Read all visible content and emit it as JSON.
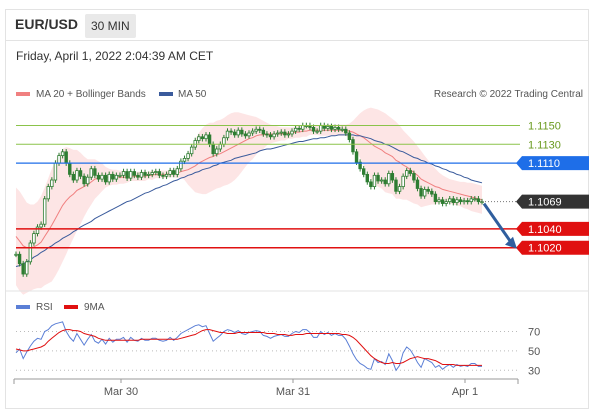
{
  "header": {
    "pair": "EUR/USD",
    "timeframe": "30 MIN"
  },
  "datetime": "Friday, April 1, 2022 2:04:39 AM CET",
  "legend": {
    "ma20": "MA 20 + Bollinger Bands",
    "ma50": "MA 50",
    "credit": "Research © 2022 Trading Central",
    "rsi": "RSI",
    "ma9": "9MA"
  },
  "colors": {
    "ma20": "#f08080",
    "ma50": "#3a5b9c",
    "bands": "#fde0e0",
    "candle": "#2e7d32",
    "resistance_green": "#8bc34a",
    "current_blue": "#1e6ee8",
    "support_red": "#e01010",
    "price_tag": "#333333",
    "rsi": "#5b7fd6",
    "rsi_ma": "#e01010",
    "arrow": "#2f5e9e"
  },
  "chart_data": [
    {
      "type": "candlestick",
      "title": "EUR/USD 30 MIN",
      "ylim": [
        1.0975,
        1.1175
      ],
      "x_labels": [
        "Mar 30",
        "Mar 31",
        "Apr 1"
      ],
      "levels": [
        {
          "value": 1.115,
          "label": "1.1150",
          "kind": "resistance"
        },
        {
          "value": 1.113,
          "label": "1.1130",
          "kind": "resistance"
        },
        {
          "value": 1.111,
          "label": "1.1110",
          "kind": "pivot"
        },
        {
          "value": 1.1069,
          "label": "1.1069",
          "kind": "current"
        },
        {
          "value": 1.104,
          "label": "1.1040",
          "kind": "support"
        },
        {
          "value": 1.102,
          "label": "1.1020",
          "kind": "support"
        }
      ],
      "close": [
        1.1013,
        1.1003,
        1.0992,
        1.1005,
        1.1025,
        1.1035,
        1.1042,
        1.1045,
        1.1072,
        1.1085,
        1.1092,
        1.111,
        1.1118,
        1.1122,
        1.111,
        1.1098,
        1.1092,
        1.1102,
        1.1096,
        1.1088,
        1.1095,
        1.1104,
        1.1097,
        1.1093,
        1.1097,
        1.109,
        1.1098,
        1.1093,
        1.1097,
        1.1097,
        1.1101,
        1.1094,
        1.1101,
        1.1097,
        1.1095,
        1.11,
        1.1097,
        1.1098,
        1.11,
        1.1101,
        1.1097,
        1.1096,
        1.1098,
        1.1102,
        1.1098,
        1.1104,
        1.1112,
        1.1115,
        1.112,
        1.1127,
        1.1134,
        1.1138,
        1.1136,
        1.114,
        1.113,
        1.112,
        1.1125,
        1.113,
        1.1137,
        1.1144,
        1.1143,
        1.114,
        1.1145,
        1.1141,
        1.1139,
        1.1142,
        1.1144,
        1.1146,
        1.1145,
        1.1141,
        1.114,
        1.1138,
        1.1141,
        1.1142,
        1.1143,
        1.114,
        1.1141,
        1.1144,
        1.1147,
        1.1146,
        1.115,
        1.115,
        1.1148,
        1.1144,
        1.1144,
        1.115,
        1.1147,
        1.1149,
        1.1146,
        1.1148,
        1.1146,
        1.1146,
        1.1142,
        1.1135,
        1.1122,
        1.1111,
        1.1104,
        1.1098,
        1.109,
        1.1085,
        1.1097,
        1.1091,
        1.1092,
        1.1088,
        1.1099,
        1.1092,
        1.108,
        1.1085,
        1.1096,
        1.1102,
        1.1099,
        1.1092,
        1.1083,
        1.1075,
        1.1082,
        1.108,
        1.1077,
        1.1069,
        1.1071,
        1.1067,
        1.1069,
        1.1072,
        1.1068,
        1.1071,
        1.1069,
        1.107,
        1.1069,
        1.1072,
        1.1072,
        1.1069,
        1.1069
      ],
      "ma20": [
        1.1032,
        1.1027,
        1.1022,
        1.102,
        1.102,
        1.1021,
        1.1023,
        1.1026,
        1.1032,
        1.1038,
        1.1044,
        1.1051,
        1.1058,
        1.1065,
        1.107,
        1.1074,
        1.1077,
        1.1081,
        1.1083,
        1.1085,
        1.1087,
        1.109,
        1.1093,
        1.1094,
        1.1095,
        1.1095,
        1.1095,
        1.1095,
        1.1095,
        1.1095,
        1.1095,
        1.1095,
        1.1096,
        1.1096,
        1.1096,
        1.1096,
        1.1096,
        1.1097,
        1.1097,
        1.1098,
        1.1098,
        1.1098,
        1.1098,
        1.1099,
        1.1099,
        1.1099,
        1.1101,
        1.1102,
        1.1103,
        1.1105,
        1.1107,
        1.111,
        1.1112,
        1.1114,
        1.1116,
        1.1117,
        1.1119,
        1.112,
        1.1122,
        1.1124,
        1.1126,
        1.1128,
        1.113,
        1.1132,
        1.1134,
        1.1136,
        1.1137,
        1.1139,
        1.114,
        1.114,
        1.1141,
        1.1141,
        1.1141,
        1.1141,
        1.1141,
        1.1141,
        1.1142,
        1.1142,
        1.1143,
        1.1143,
        1.1144,
        1.1144,
        1.1145,
        1.1145,
        1.1145,
        1.1145,
        1.1145,
        1.1145,
        1.1145,
        1.1145,
        1.1145,
        1.1145,
        1.1145,
        1.1144,
        1.1143,
        1.1141,
        1.1139,
        1.1137,
        1.1134,
        1.1131,
        1.1128,
        1.1126,
        1.1124,
        1.1121,
        1.1119,
        1.1117,
        1.1113,
        1.1111,
        1.1108,
        1.1106,
        1.1103,
        1.11,
        1.1097,
        1.1093,
        1.1091,
        1.1089,
        1.1087,
        1.1085,
        1.1084,
        1.1082,
        1.1081,
        1.108,
        1.1079,
        1.1078,
        1.1077,
        1.1076,
        1.1075,
        1.1074,
        1.1073,
        1.1072,
        1.1071
      ],
      "upper_band": [
        1.1084,
        1.108,
        1.1074,
        1.1068,
        1.1066,
        1.1066,
        1.1069,
        1.1075,
        1.1084,
        1.1094,
        1.1104,
        1.1112,
        1.1119,
        1.1125,
        1.1127,
        1.1126,
        1.1124,
        1.1124,
        1.1121,
        1.1117,
        1.1114,
        1.1114,
        1.1114,
        1.1112,
        1.111,
        1.1106,
        1.1104,
        1.1103,
        1.1103,
        1.1102,
        1.1102,
        1.1101,
        1.1101,
        1.1101,
        1.1101,
        1.1101,
        1.1101,
        1.1101,
        1.1102,
        1.1102,
        1.1102,
        1.1102,
        1.1102,
        1.1103,
        1.1103,
        1.1104,
        1.1107,
        1.1112,
        1.1119,
        1.1127,
        1.1135,
        1.1142,
        1.1147,
        1.1151,
        1.1153,
        1.1153,
        1.1155,
        1.1156,
        1.1158,
        1.1161,
        1.1163,
        1.1164,
        1.1164,
        1.1163,
        1.1162,
        1.1161,
        1.116,
        1.1159,
        1.1157,
        1.1155,
        1.1153,
        1.1151,
        1.115,
        1.1149,
        1.1148,
        1.1148,
        1.1148,
        1.1148,
        1.1149,
        1.1149,
        1.115,
        1.115,
        1.115,
        1.115,
        1.115,
        1.1151,
        1.1151,
        1.1151,
        1.1151,
        1.1151,
        1.1151,
        1.1151,
        1.1151,
        1.1152,
        1.1155,
        1.1159,
        1.1163,
        1.1166,
        1.1168,
        1.1169,
        1.1168,
        1.1167,
        1.1165,
        1.1163,
        1.116,
        1.1157,
        1.1154,
        1.115,
        1.1145,
        1.1141,
        1.1137,
        1.1133,
        1.1128,
        1.1123,
        1.1118,
        1.1113,
        1.1108,
        1.1104,
        1.11,
        1.1097,
        1.1095,
        1.1093,
        1.1092,
        1.1091,
        1.109,
        1.109,
        1.1089,
        1.1089,
        1.1088,
        1.1087,
        1.1086
      ],
      "lower_band": [
        1.098,
        1.0974,
        1.097,
        1.0972,
        1.0974,
        1.0976,
        1.0977,
        1.0977,
        1.098,
        1.0982,
        1.0984,
        1.099,
        1.0997,
        1.1005,
        1.1013,
        1.1022,
        1.103,
        1.1038,
        1.1045,
        1.1053,
        1.106,
        1.1066,
        1.1072,
        1.1076,
        1.108,
        1.1084,
        1.1086,
        1.1087,
        1.1087,
        1.1088,
        1.1088,
        1.1089,
        1.1091,
        1.1091,
        1.1091,
        1.1091,
        1.1091,
        1.1093,
        1.1092,
        1.1094,
        1.1094,
        1.1094,
        1.1094,
        1.1095,
        1.1095,
        1.1094,
        1.1095,
        1.1092,
        1.1087,
        1.1083,
        1.1079,
        1.1078,
        1.1077,
        1.1077,
        1.1079,
        1.1081,
        1.1083,
        1.1084,
        1.1086,
        1.1087,
        1.1089,
        1.1092,
        1.1096,
        1.1101,
        1.1106,
        1.1111,
        1.1114,
        1.1119,
        1.1123,
        1.1125,
        1.1129,
        1.1131,
        1.1132,
        1.1133,
        1.1134,
        1.1134,
        1.1136,
        1.1136,
        1.1137,
        1.1137,
        1.1138,
        1.1138,
        1.114,
        1.114,
        1.114,
        1.1139,
        1.1139,
        1.1139,
        1.1139,
        1.1139,
        1.1139,
        1.1139,
        1.1139,
        1.1136,
        1.1131,
        1.1123,
        1.1115,
        1.1108,
        1.11,
        1.1093,
        1.1088,
        1.1085,
        1.1083,
        1.1079,
        1.1078,
        1.1077,
        1.1072,
        1.1072,
        1.1071,
        1.1071,
        1.1069,
        1.1067,
        1.1066,
        1.1063,
        1.1064,
        1.1065,
        1.1066,
        1.1066,
        1.1068,
        1.1067,
        1.1067,
        1.1067,
        1.1066,
        1.1065,
        1.1064,
        1.1062,
        1.1061,
        1.1059,
        1.1058,
        1.1057,
        1.1056
      ],
      "ma50": [
        1.1,
        1.1001,
        1.1003,
        1.1005,
        1.1007,
        1.101,
        1.1012,
        1.1015,
        1.1017,
        1.102,
        1.1022,
        1.1025,
        1.1027,
        1.103,
        1.1032,
        1.1034,
        1.1037,
        1.1039,
        1.1042,
        1.1044,
        1.1046,
        1.1048,
        1.1051,
        1.1053,
        1.1055,
        1.1057,
        1.1059,
        1.1061,
        1.1063,
        1.1065,
        1.1067,
        1.1069,
        1.107,
        1.1072,
        1.1074,
        1.1076,
        1.1078,
        1.1079,
        1.1081,
        1.1083,
        1.1084,
        1.1086,
        1.1087,
        1.1089,
        1.1091,
        1.1092,
        1.1094,
        1.1095,
        1.1097,
        1.1098,
        1.11,
        1.1101,
        1.1103,
        1.1104,
        1.1105,
        1.1107,
        1.1108,
        1.111,
        1.1111,
        1.1112,
        1.1113,
        1.1115,
        1.1116,
        1.1117,
        1.1118,
        1.1119,
        1.112,
        1.1121,
        1.1123,
        1.1124,
        1.1125,
        1.1125,
        1.1126,
        1.1127,
        1.1128,
        1.1129,
        1.113,
        1.1131,
        1.1132,
        1.1133,
        1.1133,
        1.1134,
        1.1135,
        1.1136,
        1.1136,
        1.1137,
        1.1137,
        1.1138,
        1.1139,
        1.1139,
        1.114,
        1.114,
        1.114,
        1.114,
        1.114,
        1.1139,
        1.1139,
        1.1138,
        1.1137,
        1.1136,
        1.1134,
        1.1133,
        1.1132,
        1.113,
        1.1129,
        1.1127,
        1.1125,
        1.1123,
        1.1122,
        1.112,
        1.1118,
        1.1116,
        1.1115,
        1.1113,
        1.1112,
        1.111,
        1.1109,
        1.1107,
        1.1106,
        1.1104,
        1.1103,
        1.1101,
        1.11,
        1.1098,
        1.1097,
        1.1095,
        1.1094,
        1.1092,
        1.1091,
        1.109,
        1.1089
      ]
    },
    {
      "type": "line",
      "title": "RSI",
      "ylim": [
        22,
        84
      ],
      "ticks": [
        70,
        50,
        30
      ],
      "series": [
        {
          "name": "RSI",
          "values": [
            48,
            52,
            42,
            49,
            55,
            60,
            63,
            62,
            70,
            72,
            76,
            78,
            79,
            80,
            70,
            64,
            60,
            68,
            62,
            56,
            62,
            67,
            60,
            58,
            62,
            57,
            63,
            59,
            62,
            62,
            64,
            59,
            64,
            61,
            60,
            63,
            61,
            61,
            63,
            63,
            61,
            60,
            61,
            64,
            61,
            64,
            68,
            70,
            72,
            74,
            76,
            77,
            75,
            76,
            68,
            60,
            63,
            66,
            70,
            72,
            71,
            69,
            71,
            68,
            67,
            69,
            70,
            71,
            70,
            66,
            65,
            63,
            65,
            66,
            67,
            65,
            65,
            68,
            70,
            69,
            72,
            72,
            69,
            64,
            64,
            70,
            67,
            69,
            66,
            68,
            66,
            66,
            62,
            55,
            47,
            41,
            37,
            35,
            32,
            31,
            42,
            38,
            39,
            36,
            47,
            40,
            30,
            35,
            48,
            54,
            51,
            45,
            38,
            33,
            42,
            40,
            38,
            33,
            35,
            31,
            34,
            36,
            33,
            36,
            34,
            35,
            34,
            37,
            37,
            34,
            34
          ]
        },
        {
          "name": "9MA",
          "values": [
            52,
            51,
            50,
            50,
            51,
            52,
            53,
            54,
            56,
            60,
            63,
            66,
            69,
            71,
            72,
            72,
            71,
            71,
            70,
            68,
            67,
            66,
            65,
            63,
            62,
            61,
            61,
            61,
            61,
            61,
            61,
            61,
            61,
            61,
            61,
            62,
            62,
            62,
            62,
            62,
            62,
            62,
            62,
            62,
            62,
            62,
            63,
            64,
            65,
            66,
            67,
            69,
            71,
            72,
            72,
            71,
            70,
            69,
            69,
            68,
            68,
            68,
            69,
            69,
            69,
            69,
            69,
            69,
            69,
            69,
            68,
            68,
            68,
            67,
            67,
            67,
            66,
            66,
            67,
            67,
            67,
            68,
            68,
            68,
            68,
            68,
            68,
            68,
            68,
            68,
            68,
            67,
            67,
            66,
            64,
            61,
            57,
            53,
            49,
            45,
            42,
            40,
            38,
            37,
            37,
            38,
            37,
            37,
            38,
            40,
            42,
            43,
            44,
            43,
            42,
            42,
            41,
            40,
            38,
            36,
            36,
            36,
            36,
            35,
            35,
            35,
            35,
            35,
            35,
            35,
            35
          ]
        }
      ],
      "x_labels": [
        "Mar 30",
        "Mar 31",
        "Apr 1"
      ]
    }
  ]
}
